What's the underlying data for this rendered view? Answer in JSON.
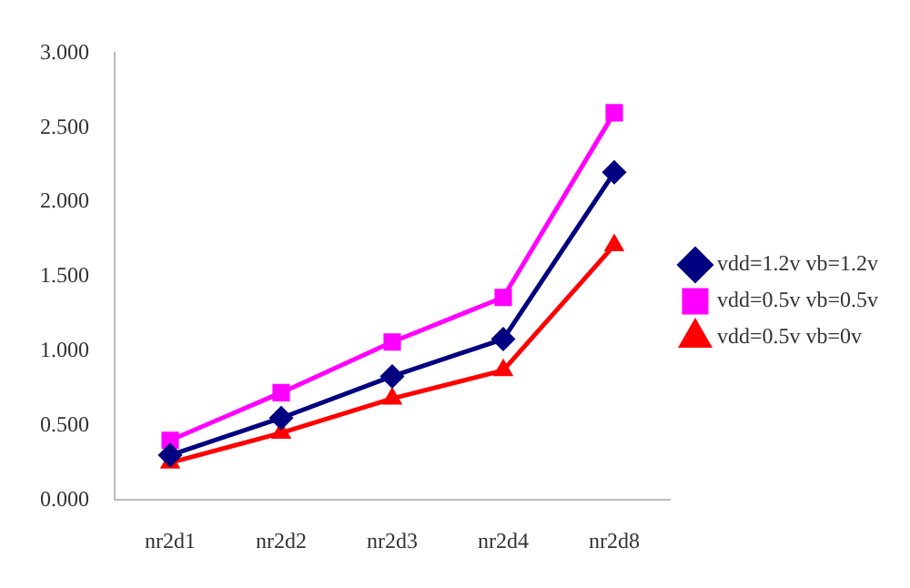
{
  "chart_data": {
    "type": "line",
    "categories": [
      "nr2d1",
      "nr2d2",
      "nr2d3",
      "nr2d4",
      "nr2d8"
    ],
    "series": [
      {
        "name": "vdd=1.2v vb=1.2v",
        "color": "#000080",
        "marker": "diamond",
        "values": [
          0.3,
          0.55,
          0.83,
          1.08,
          2.2
        ]
      },
      {
        "name": "vdd=0.5v vb=0.5v",
        "color": "#ff00ff",
        "marker": "square",
        "values": [
          0.4,
          0.72,
          1.06,
          1.36,
          2.6
        ]
      },
      {
        "name": "vdd=0.5v vb=0v",
        "color": "#ff0000",
        "marker": "triangle",
        "values": [
          0.25,
          0.45,
          0.68,
          0.87,
          1.71
        ]
      }
    ],
    "ylim": [
      0,
      3
    ],
    "yticks": [
      {
        "value": 0,
        "label": "0.000"
      },
      {
        "value": 0.5,
        "label": "0.500"
      },
      {
        "value": 1,
        "label": "1.000"
      },
      {
        "value": 1.5,
        "label": "1.500"
      },
      {
        "value": 2,
        "label": "2.000"
      },
      {
        "value": 2.5,
        "label": "2.500"
      },
      {
        "value": 3,
        "label": "3.000"
      }
    ],
    "grid": false,
    "legend": "right",
    "line_style": "solid"
  }
}
